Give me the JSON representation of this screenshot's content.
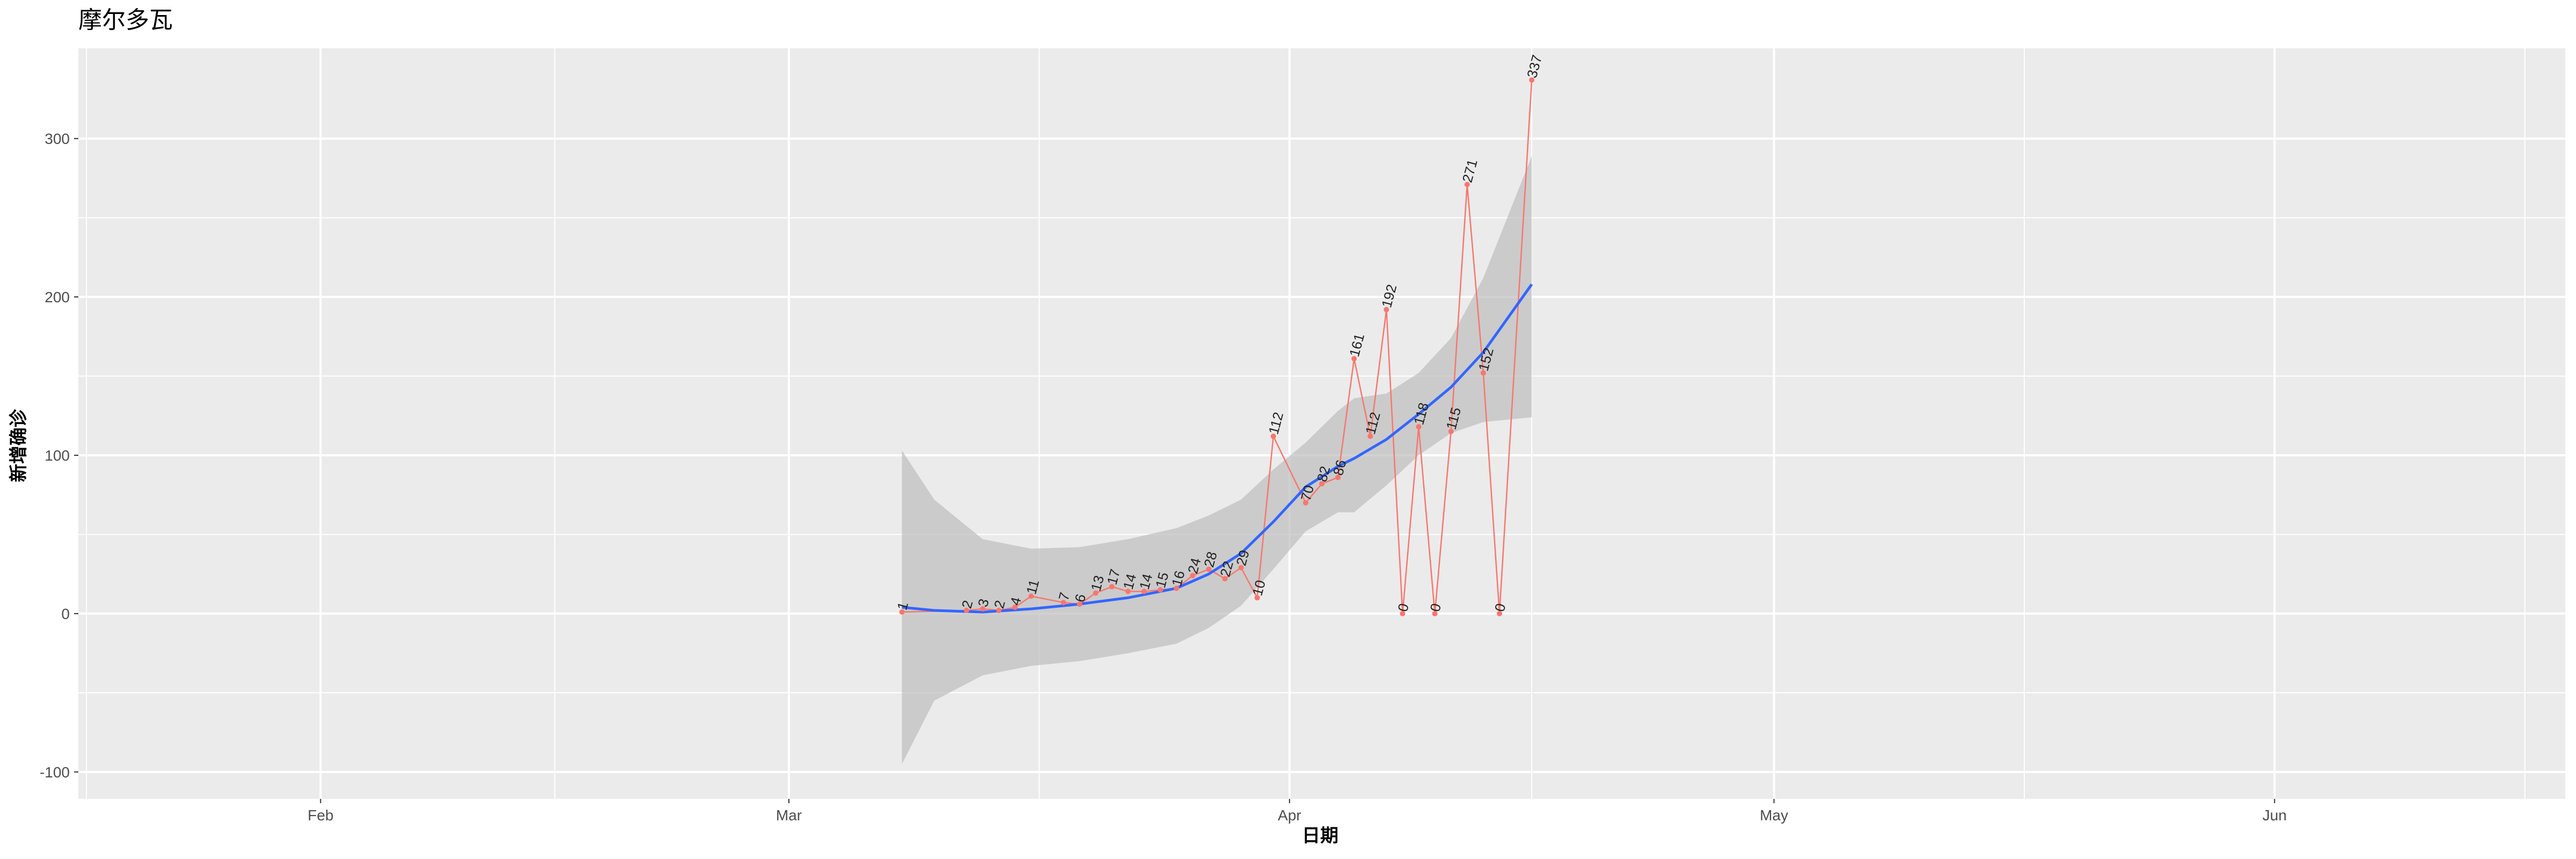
{
  "chart_data": {
    "type": "line",
    "title": "摩尔多瓦",
    "xlabel": "日期",
    "ylabel": "新增确诊",
    "x_ticks": [
      {
        "date": "2020-02-01",
        "label": "Feb"
      },
      {
        "date": "2020-03-01",
        "label": "Mar"
      },
      {
        "date": "2020-04-01",
        "label": "Apr"
      },
      {
        "date": "2020-05-01",
        "label": "May"
      },
      {
        "date": "2020-06-01",
        "label": "Jun"
      }
    ],
    "y_ticks": [
      -100,
      0,
      100,
      200,
      300
    ],
    "xlim": [
      "2020-01-17",
      "2020-06-19"
    ],
    "ylim": [
      -117,
      357
    ],
    "grid": true,
    "legend": "none",
    "colors": {
      "panel_background": "#ebebeb",
      "grid": "#ffffff",
      "points_line": "#f8766d",
      "smooth_line": "#3366ff",
      "confidence_band": "#bdbdbd"
    },
    "series": [
      {
        "type": "points_line",
        "points": [
          {
            "x": "2020-03-08",
            "y": 1
          },
          {
            "x": "2020-03-12",
            "y": 2
          },
          {
            "x": "2020-03-13",
            "y": 3
          },
          {
            "x": "2020-03-14",
            "y": 2
          },
          {
            "x": "2020-03-15",
            "y": 4
          },
          {
            "x": "2020-03-16",
            "y": 11
          },
          {
            "x": "2020-03-18",
            "y": 7
          },
          {
            "x": "2020-03-19",
            "y": 6
          },
          {
            "x": "2020-03-20",
            "y": 13
          },
          {
            "x": "2020-03-21",
            "y": 17
          },
          {
            "x": "2020-03-22",
            "y": 14
          },
          {
            "x": "2020-03-23",
            "y": 14
          },
          {
            "x": "2020-03-24",
            "y": 15
          },
          {
            "x": "2020-03-25",
            "y": 16
          },
          {
            "x": "2020-03-26",
            "y": 24
          },
          {
            "x": "2020-03-27",
            "y": 28
          },
          {
            "x": "2020-03-28",
            "y": 22
          },
          {
            "x": "2020-03-29",
            "y": 29
          },
          {
            "x": "2020-03-30",
            "y": 10
          },
          {
            "x": "2020-03-31",
            "y": 112
          },
          {
            "x": "2020-04-02",
            "y": 70
          },
          {
            "x": "2020-04-03",
            "y": 82
          },
          {
            "x": "2020-04-04",
            "y": 86
          },
          {
            "x": "2020-04-05",
            "y": 161
          },
          {
            "x": "2020-04-06",
            "y": 112
          },
          {
            "x": "2020-04-07",
            "y": 192
          },
          {
            "x": "2020-04-08",
            "y": 0
          },
          {
            "x": "2020-04-09",
            "y": 118
          },
          {
            "x": "2020-04-10",
            "y": 0
          },
          {
            "x": "2020-04-11",
            "y": 115
          },
          {
            "x": "2020-04-12",
            "y": 271
          },
          {
            "x": "2020-04-13",
            "y": 152
          },
          {
            "x": "2020-04-14",
            "y": 0
          },
          {
            "x": "2020-04-16",
            "y": 337
          }
        ]
      },
      {
        "type": "smooth",
        "points": [
          {
            "x": "2020-03-08",
            "y": 4,
            "lower": -95,
            "upper": 103
          },
          {
            "x": "2020-03-10",
            "y": 2,
            "lower": -55,
            "upper": 72
          },
          {
            "x": "2020-03-13",
            "y": 1,
            "lower": -39,
            "upper": 47
          },
          {
            "x": "2020-03-16",
            "y": 3,
            "lower": -33,
            "upper": 41
          },
          {
            "x": "2020-03-19",
            "y": 6,
            "lower": -30,
            "upper": 42
          },
          {
            "x": "2020-03-22",
            "y": 10,
            "lower": -25,
            "upper": 47
          },
          {
            "x": "2020-03-25",
            "y": 16,
            "lower": -19,
            "upper": 54
          },
          {
            "x": "2020-03-27",
            "y": 25,
            "lower": -9,
            "upper": 62
          },
          {
            "x": "2020-03-29",
            "y": 38,
            "lower": 5,
            "upper": 72
          },
          {
            "x": "2020-03-31",
            "y": 58,
            "lower": 28,
            "upper": 91
          },
          {
            "x": "2020-04-02",
            "y": 80,
            "lower": 52,
            "upper": 108
          },
          {
            "x": "2020-04-04",
            "y": 93,
            "lower": 64,
            "upper": 128
          },
          {
            "x": "2020-04-05",
            "y": 98,
            "lower": 64,
            "upper": 136
          },
          {
            "x": "2020-04-07",
            "y": 110,
            "lower": 81,
            "upper": 139
          },
          {
            "x": "2020-04-09",
            "y": 126,
            "lower": 100,
            "upper": 152
          },
          {
            "x": "2020-04-11",
            "y": 143,
            "lower": 114,
            "upper": 174
          },
          {
            "x": "2020-04-13",
            "y": 165,
            "lower": 121,
            "upper": 212
          },
          {
            "x": "2020-04-16",
            "y": 208,
            "lower": 124,
            "upper": 289
          }
        ]
      }
    ]
  }
}
